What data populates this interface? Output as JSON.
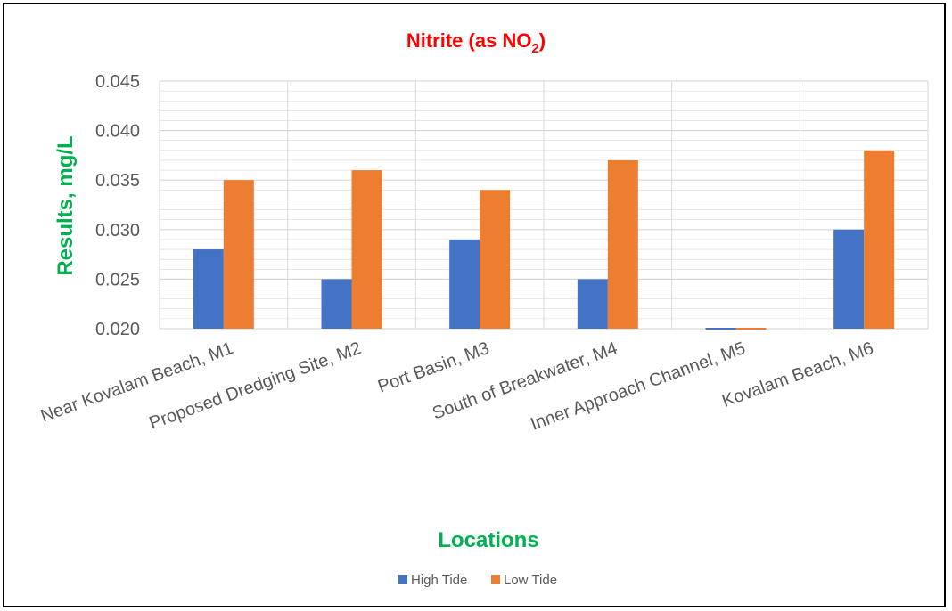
{
  "chart_data": {
    "type": "bar",
    "title": "Nitrite (as NO2)",
    "title_parts": {
      "main": "Nitrite (as NO",
      "subscript": "2",
      "close": ")"
    },
    "xlabel": "Locations",
    "ylabel": "Results, mg/L",
    "categories": [
      "Near Kovalam Beach, M1",
      "Proposed Dredging Site, M2",
      "Port Basin, M3",
      "South of Breakwater, M4",
      "Inner Approach Channel, M5",
      "Kovalam Beach, M6"
    ],
    "series": [
      {
        "name": "High Tide",
        "color": "#4472c4",
        "values": [
          0.028,
          0.025,
          0.029,
          0.025,
          0.02,
          0.03
        ]
      },
      {
        "name": "Low Tide",
        "color": "#ed7d31",
        "values": [
          0.035,
          0.036,
          0.034,
          0.037,
          0.02,
          0.038
        ]
      }
    ],
    "ylim": [
      0.02,
      0.045
    ],
    "yticks": [
      "0.020",
      "0.025",
      "0.030",
      "0.035",
      "0.040",
      "0.045"
    ],
    "minor_ticks_per_major": 5,
    "grid": true,
    "legend_position": "bottom",
    "colors": {
      "title": "#ff0000",
      "axis_title": "#00b050",
      "grid": "#d9d9d9",
      "tick": "#595959"
    }
  }
}
